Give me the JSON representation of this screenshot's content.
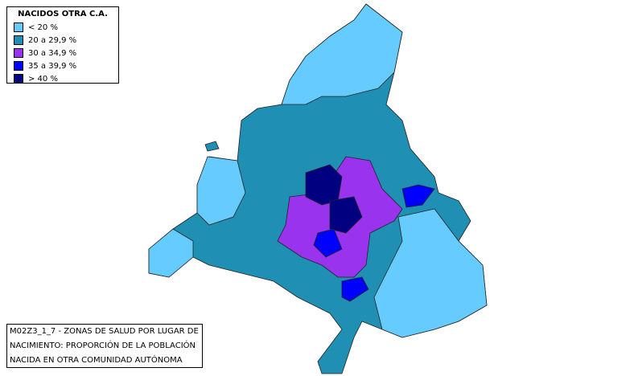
{
  "legend": {
    "title": "NACIDOS OTRA C.A.",
    "items": [
      {
        "label": "< 20 %",
        "color": "#66ccff"
      },
      {
        "label": "20 a 29,9 %",
        "color": "#1f8fb3"
      },
      {
        "label": "30 a 34,9 %",
        "color": "#9933ee"
      },
      {
        "label": "35 a 39,9 %",
        "color": "#0000ff"
      },
      {
        "label": "> 40 %",
        "color": "#000080"
      }
    ]
  },
  "caption": {
    "lines": [
      "M02Z3_1_7 - ZONAS DE SALUD POR LUGAR DE",
      "NACIMIENTO: PROPORCIÓN DE LA POBLACIÓN",
      "NACIDA EN OTRA COMUNIDAD AUTÓNOMA"
    ]
  }
}
